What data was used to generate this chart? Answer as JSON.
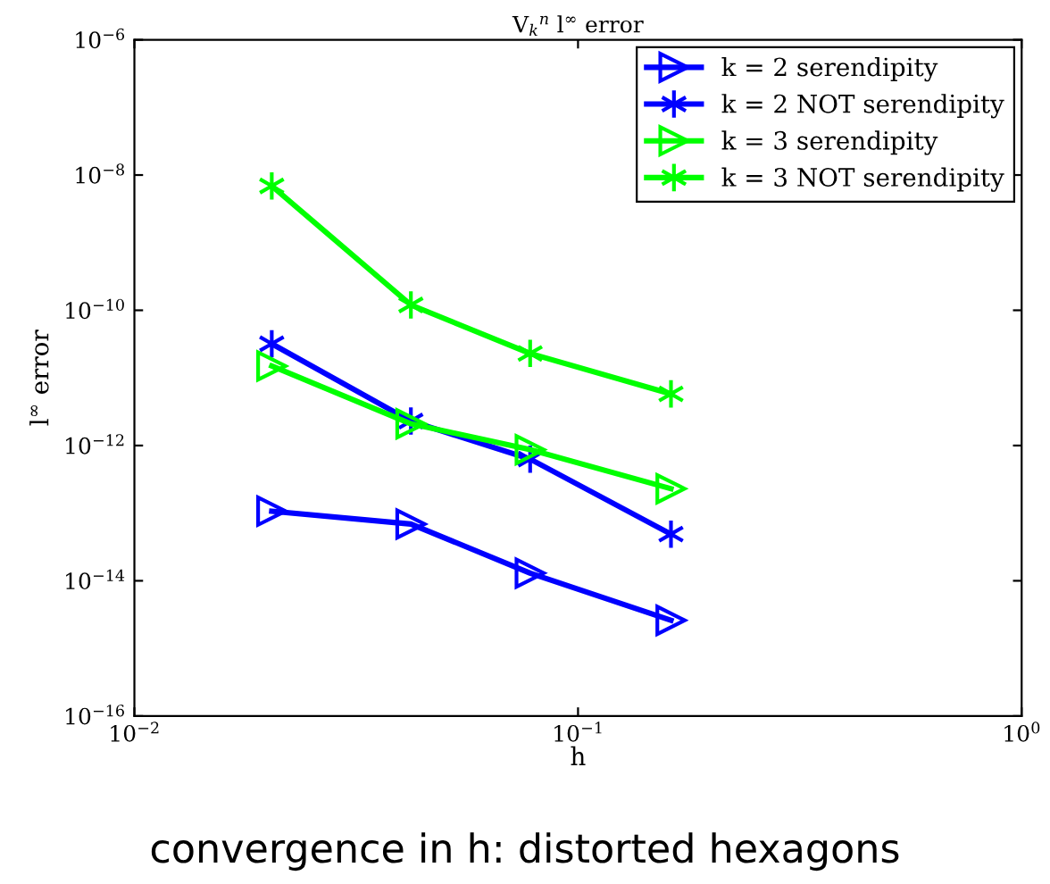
{
  "chart_data": {
    "type": "line",
    "title": "V$_{k}$$^{n}$ l$^{∞}$ error",
    "xlabel": "h",
    "ylabel": "l$^{∞}$ error",
    "annotations": [
      "convergence in h: distorted hexagons"
    ],
    "log": "xy",
    "xlim": [
      0.01,
      1
    ],
    "xticks": [
      {
        "value": 0.01,
        "label": "10$^{−2}$"
      },
      {
        "value": 0.1,
        "label": "10$^{−1}$"
      },
      {
        "value": 1,
        "label": "10$^{0}$"
      }
    ],
    "ylim": [
      1e-16,
      1e-06
    ],
    "yticks": [
      {
        "value": 1e-16,
        "label": "10$^{−16}$"
      },
      {
        "value": 1e-14,
        "label": "10$^{−14}$"
      },
      {
        "value": 1e-12,
        "label": "10$^{−12}$"
      },
      {
        "value": 1e-10,
        "label": "10$^{−10}$"
      },
      {
        "value": 1e-08,
        "label": "10$^{−8}$"
      },
      {
        "value": 1e-06,
        "label": "10$^{−6}$"
      }
    ],
    "grid": false,
    "legend": "top right",
    "x": [
      0.0204,
      0.042,
      0.078,
      0.162
    ],
    "series": [
      {
        "name": "k = 2 serendipity",
        "color": "#0000ff",
        "marker": "triangle",
        "values": [
          1.07e-13,
          6.9e-14,
          1.3e-14,
          2.6e-15
        ]
      },
      {
        "name": "k = 2 NOT serendipity",
        "color": "#0000ff",
        "marker": "cross",
        "values": [
          3.2e-11,
          2.3e-12,
          6.3e-13,
          4.9e-14
        ]
      },
      {
        "name": "k = 3 serendipity",
        "color": "#00ff00",
        "marker": "triangle",
        "values": [
          1.5e-11,
          2.1e-12,
          8.7e-13,
          2.3e-13
        ]
      },
      {
        "name": "k = 3 NOT serendipity",
        "color": "#00ff00",
        "marker": "cross",
        "values": [
          6.9e-09,
          1.2e-10,
          2.3e-11,
          5.8e-12
        ]
      }
    ]
  }
}
